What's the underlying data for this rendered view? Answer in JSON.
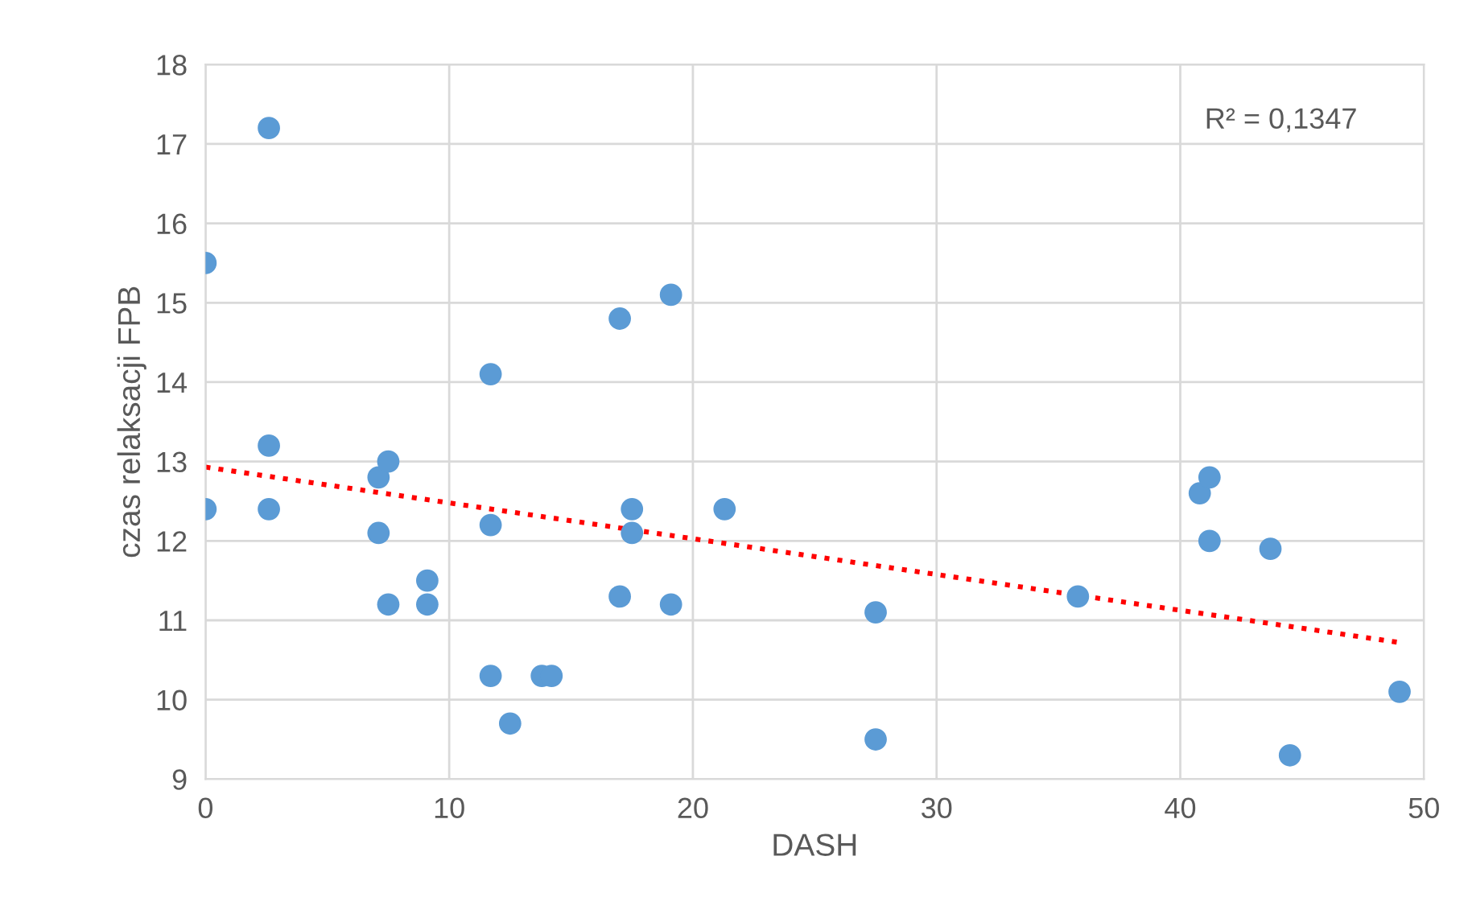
{
  "chart_data": {
    "type": "scatter",
    "xlabel": "DASH",
    "ylabel": "czas relaksacji FPB",
    "xlim": [
      0,
      50
    ],
    "xticks": [
      0,
      10,
      20,
      30,
      40,
      50
    ],
    "ylim": [
      9,
      18
    ],
    "yticks": [
      9,
      10,
      11,
      12,
      13,
      14,
      15,
      16,
      17,
      18
    ],
    "grid": true,
    "marker": "circle",
    "annotations": [
      "R² = 0,1347"
    ],
    "series": [
      {
        "color": "#5b9bd5",
        "x": [
          0,
          0,
          2.6,
          2.6,
          2.6,
          7.1,
          7.5,
          7.1,
          7.5,
          9.1,
          9.1,
          11.7,
          11.7,
          11.7,
          12.5,
          13.8,
          14.2,
          17.0,
          17.0,
          17.5,
          17.5,
          19.1,
          19.1,
          21.3,
          27.5,
          27.5,
          35.8,
          40.8,
          41.2,
          41.2,
          43.7,
          44.5,
          49.0
        ],
        "values": [
          15.5,
          12.4,
          17.2,
          13.2,
          12.4,
          12.8,
          13.0,
          12.1,
          11.2,
          11.5,
          11.2,
          14.1,
          12.2,
          10.3,
          9.7,
          10.3,
          10.3,
          14.8,
          11.3,
          12.4,
          12.1,
          15.1,
          11.2,
          12.4,
          11.1,
          9.5,
          11.3,
          12.6,
          12.8,
          12.0,
          11.9,
          9.3,
          10.1
        ]
      },
      {
        "type": "line",
        "color": "#ff0000",
        "line_style": "dotted",
        "marker": "none",
        "x": [
          0,
          49
        ],
        "values": [
          12.93,
          10.72
        ]
      }
    ]
  }
}
